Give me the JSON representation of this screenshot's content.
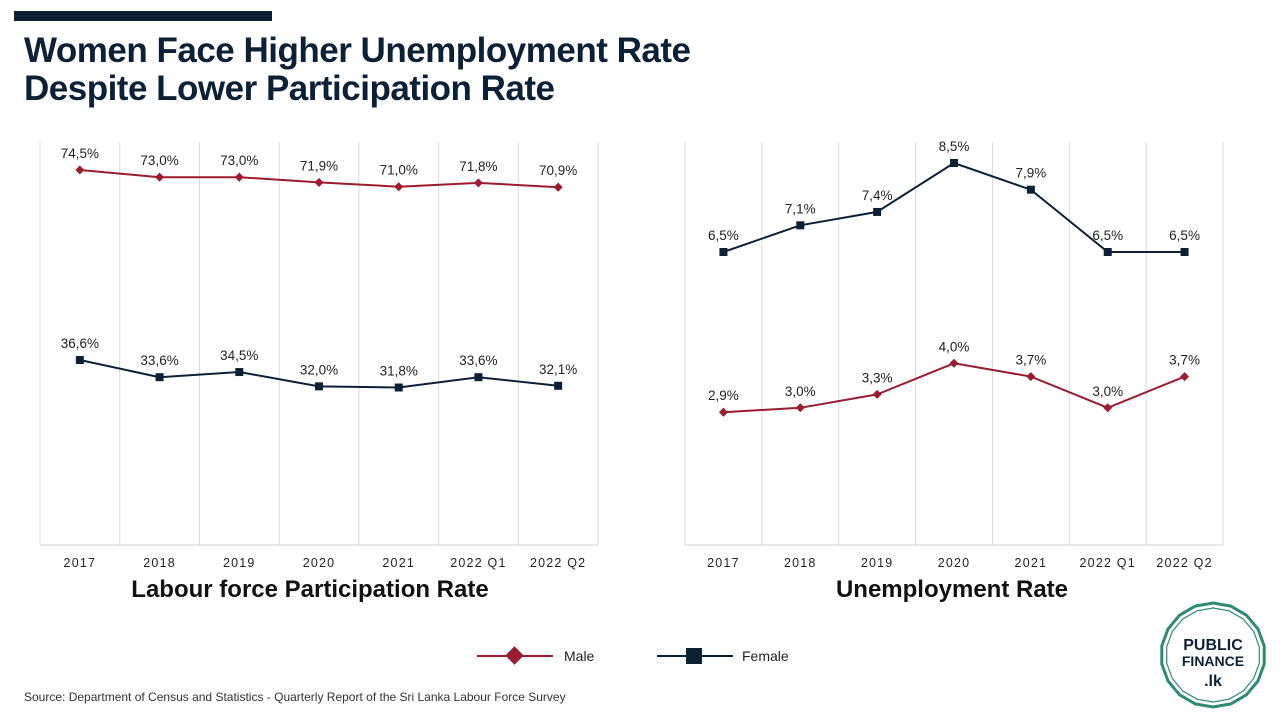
{
  "title": {
    "line1": "Women Face Higher Unemployment Rate",
    "line2": "Despite Lower Participation Rate"
  },
  "colors": {
    "male": "#9b1b30",
    "female": "#0d2136",
    "title": "#0d2136",
    "logo": "#2e8b6f"
  },
  "chart_data": [
    {
      "type": "line",
      "title": "Labour force Participation Rate",
      "categories": [
        "2017",
        "2018",
        "2019",
        "2020",
        "2021",
        "2022 Q1",
        "2022 Q2"
      ],
      "series": [
        {
          "name": "Male",
          "marker": "diamond",
          "values": [
            74.5,
            73.0,
            73.0,
            71.9,
            71.0,
            71.8,
            70.9
          ],
          "labels": [
            "74,5%",
            "73,0%",
            "73,0%",
            "71,9%",
            "71,0%",
            "71,8%",
            "70,9%"
          ]
        },
        {
          "name": "Female",
          "marker": "square",
          "values": [
            36.6,
            33.6,
            34.5,
            32.0,
            31.8,
            33.6,
            32.1
          ],
          "labels": [
            "36,6%",
            "33,6%",
            "34,5%",
            "32,0%",
            "31,8%",
            "33,6%",
            "32,1%"
          ]
        }
      ],
      "grid": "vertical"
    },
    {
      "type": "line",
      "title": "Unemployment Rate",
      "categories": [
        "2017",
        "2018",
        "2019",
        "2020",
        "2021",
        "2022 Q1",
        "2022 Q2"
      ],
      "series": [
        {
          "name": "Male",
          "marker": "diamond",
          "values": [
            2.9,
            3.0,
            3.3,
            4.0,
            3.7,
            3.0,
            3.7
          ],
          "labels": [
            "2,9%",
            "3,0%",
            "3,3%",
            "4,0%",
            "3,7%",
            "3,0%",
            "3,7%"
          ]
        },
        {
          "name": "Female",
          "marker": "square",
          "values": [
            6.5,
            7.1,
            7.4,
            8.5,
            7.9,
            6.5,
            6.5
          ],
          "labels": [
            "6,5%",
            "7,1%",
            "7,4%",
            "8,5%",
            "7,9%",
            "6,5%",
            "6,5%"
          ]
        }
      ],
      "grid": "vertical"
    }
  ],
  "legend": [
    {
      "label": "Male",
      "marker": "diamond"
    },
    {
      "label": "Female",
      "marker": "square"
    }
  ],
  "source": "Source: Department of Census and Statistics - Quarterly Report of the Sri Lanka Labour Force Survey",
  "logo": {
    "line1": "PUBLIC",
    "line2": "FINANCE",
    "line3": ".lk"
  }
}
